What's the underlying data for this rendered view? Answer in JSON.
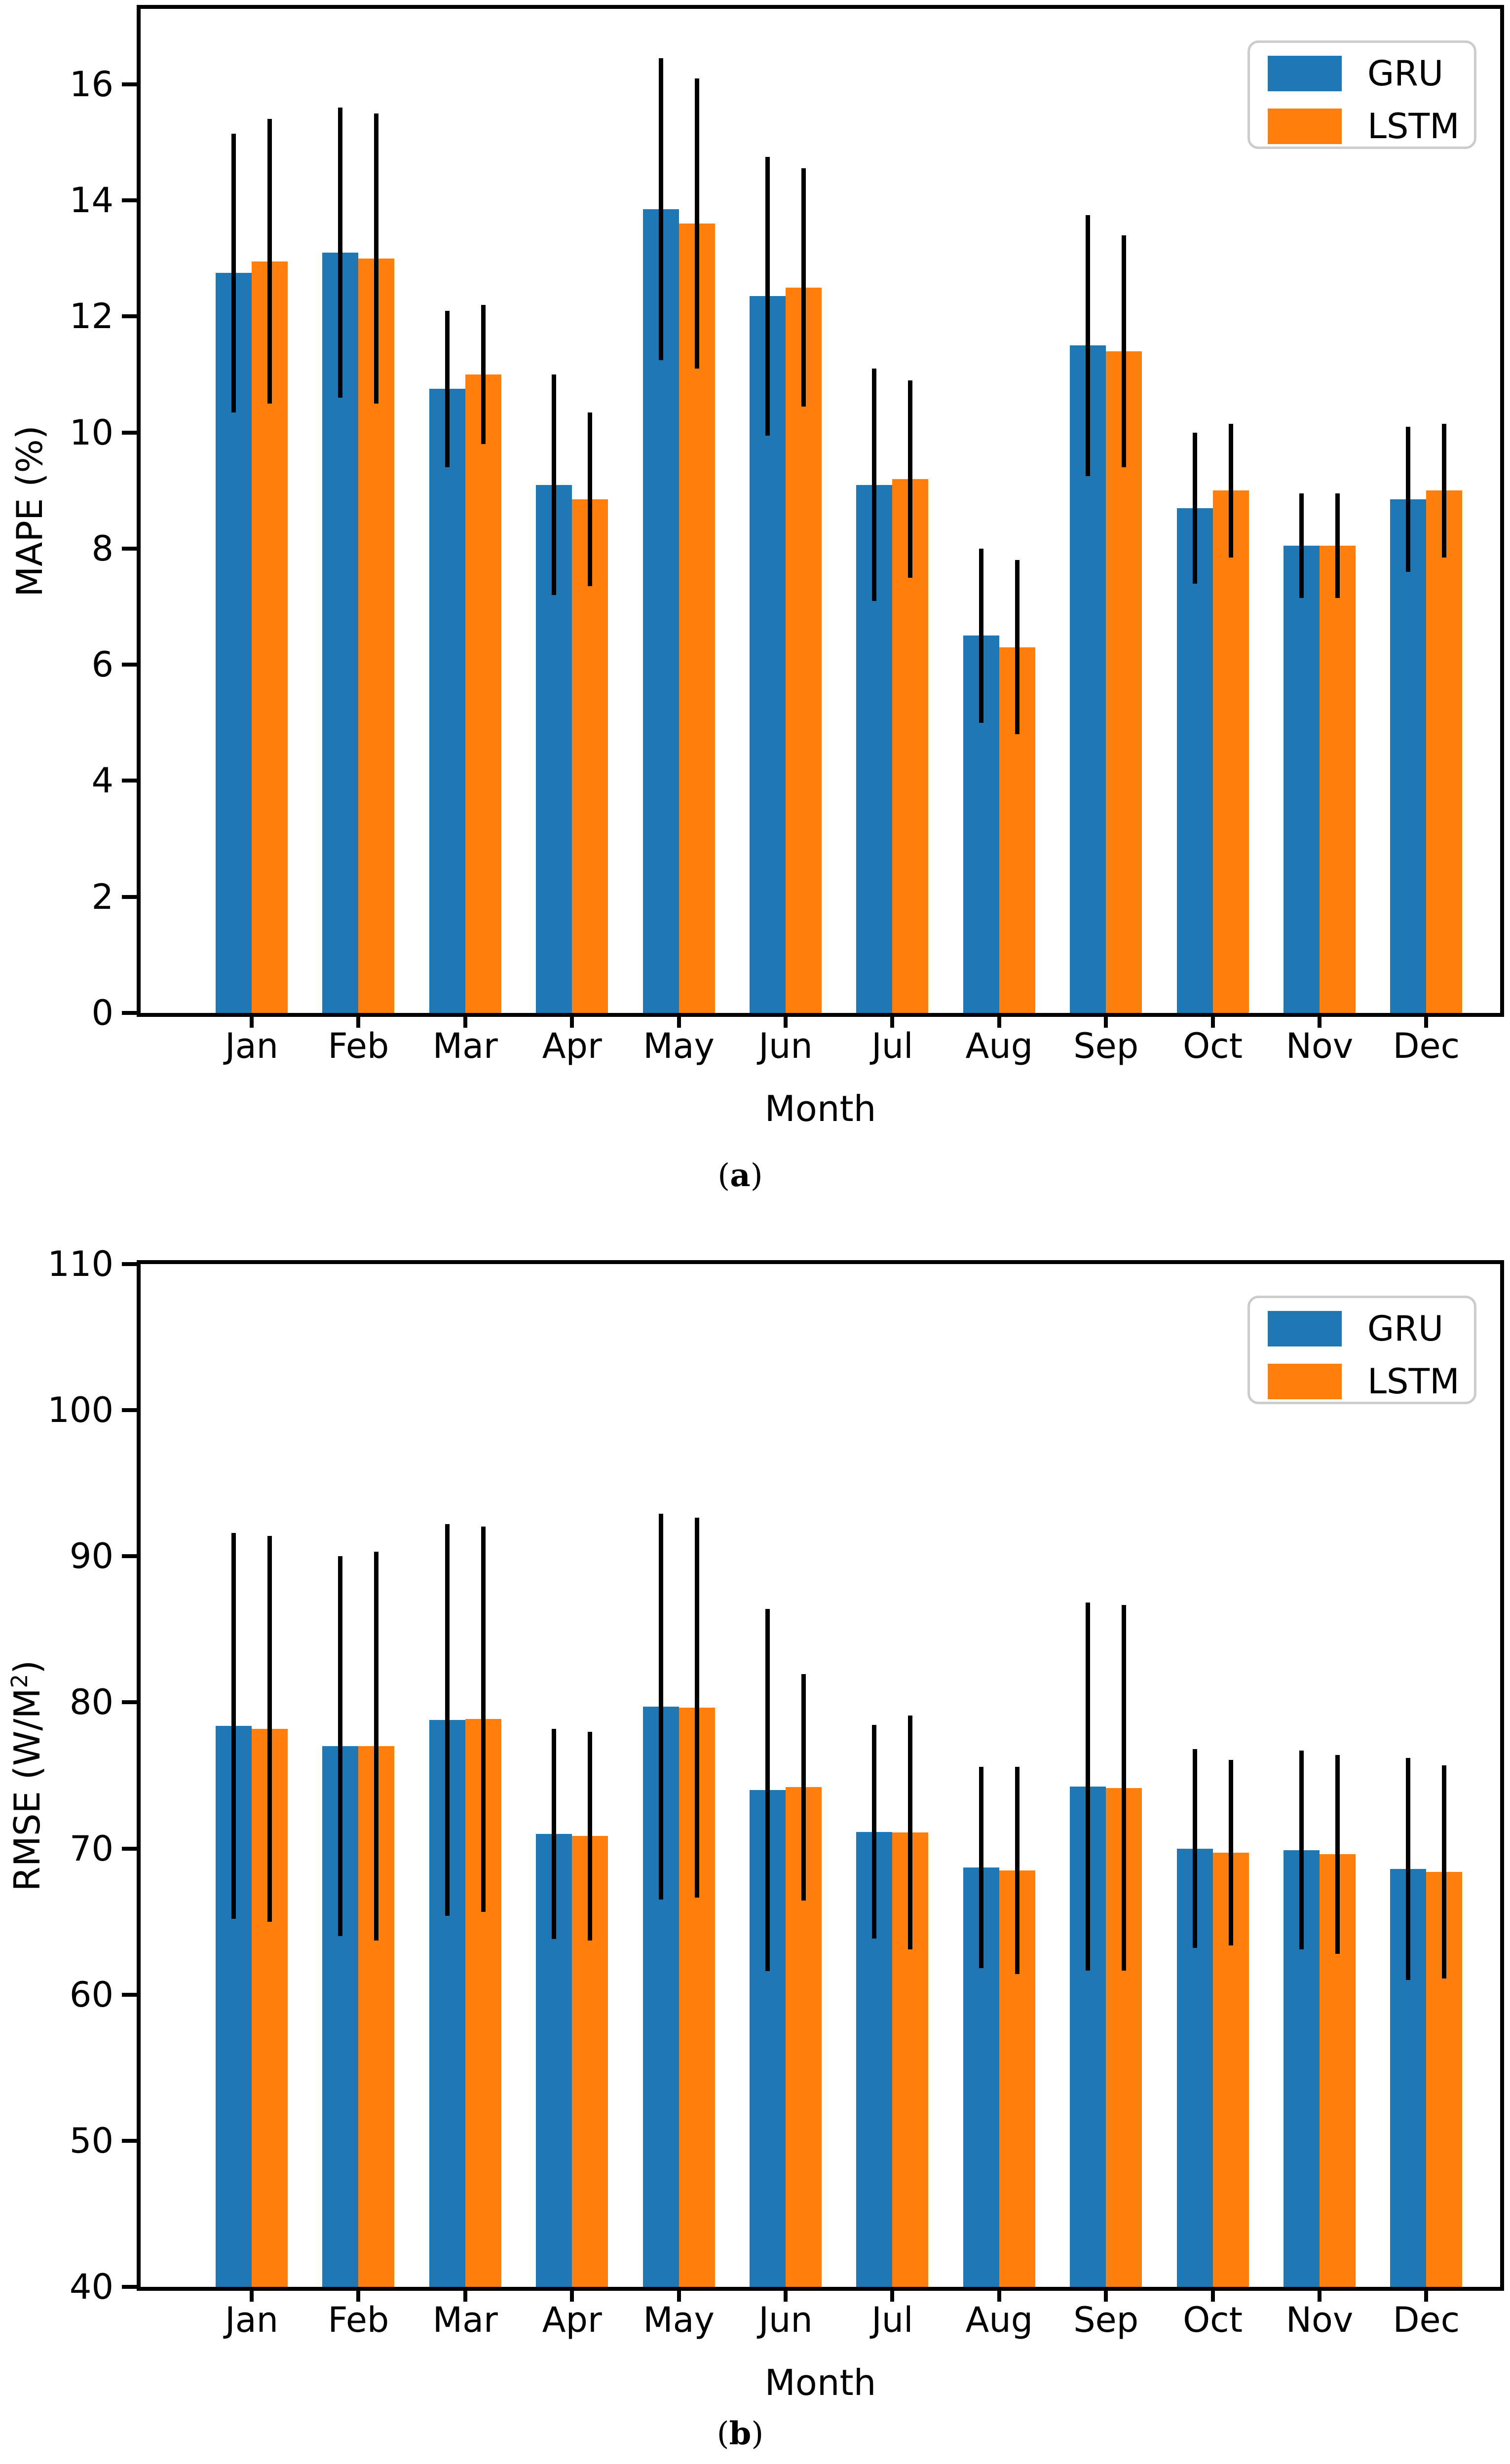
{
  "figure": {
    "background": "#ffffff",
    "captions": [
      {
        "open": "(",
        "letter": "a",
        "close": ")"
      },
      {
        "open": "(",
        "letter": "b",
        "close": ")"
      }
    ]
  },
  "chart_data": [
    {
      "type": "bar",
      "panel": "a",
      "title": "",
      "xlabel": "Month",
      "ylabel": "MAPE (%)",
      "ylim": [
        0,
        17.3
      ],
      "yticks": [
        0,
        2,
        4,
        6,
        8,
        10,
        12,
        14,
        16
      ],
      "grid": false,
      "legend_position": "upper right",
      "legend_entries": [
        "GRU",
        "LSTM"
      ],
      "error_bars": {
        "symmetric": true,
        "color": "#000000"
      },
      "categories": [
        "Jan",
        "Feb",
        "Mar",
        "Apr",
        "May",
        "Jun",
        "Jul",
        "Aug",
        "Sep",
        "Oct",
        "Nov",
        "Dec"
      ],
      "series": [
        {
          "name": "GRU",
          "color": "#1f77b4",
          "values": [
            12.75,
            13.1,
            10.75,
            9.1,
            13.85,
            12.35,
            9.1,
            6.5,
            11.5,
            8.7,
            8.05,
            8.85
          ],
          "errors": [
            2.4,
            2.5,
            1.35,
            1.9,
            2.6,
            2.4,
            2.0,
            1.5,
            2.25,
            1.3,
            0.9,
            1.25
          ]
        },
        {
          "name": "LSTM",
          "color": "#ff7f0e",
          "values": [
            12.95,
            13.0,
            11.0,
            8.85,
            13.6,
            12.5,
            9.2,
            6.3,
            11.4,
            9.0,
            8.05,
            9.0
          ],
          "errors": [
            2.45,
            2.5,
            1.2,
            1.5,
            2.5,
            2.05,
            1.7,
            1.5,
            2.0,
            1.15,
            0.9,
            1.15
          ]
        }
      ]
    },
    {
      "type": "bar",
      "panel": "b",
      "title": "",
      "xlabel": "Month",
      "ylabel": "RMSE (W/M²)",
      "ylim": [
        40,
        110
      ],
      "yticks": [
        40,
        50,
        60,
        70,
        80,
        90,
        100,
        110
      ],
      "grid": false,
      "legend_position": "upper right",
      "legend_entries": [
        "GRU",
        "LSTM"
      ],
      "error_bars": {
        "symmetric": true,
        "color": "#000000"
      },
      "categories": [
        "Jan",
        "Feb",
        "Mar",
        "Apr",
        "May",
        "Jun",
        "Jul",
        "Aug",
        "Sep",
        "Oct",
        "Nov",
        "Dec"
      ],
      "series": [
        {
          "name": "GRU",
          "color": "#1f77b4",
          "values": [
            78.4,
            77.0,
            78.8,
            71.0,
            79.7,
            74.0,
            71.15,
            68.7,
            74.25,
            70.0,
            69.9,
            68.6
          ],
          "errors": [
            13.2,
            13.0,
            13.4,
            7.2,
            13.2,
            12.4,
            7.3,
            6.9,
            12.6,
            6.8,
            6.8,
            7.6
          ]
        },
        {
          "name": "LSTM",
          "color": "#ff7f0e",
          "values": [
            78.2,
            77.0,
            78.85,
            70.85,
            79.65,
            74.2,
            71.1,
            68.5,
            74.15,
            69.7,
            69.6,
            68.4
          ],
          "errors": [
            13.2,
            13.3,
            13.2,
            7.15,
            13.0,
            7.75,
            8.0,
            7.1,
            12.5,
            6.35,
            6.8,
            7.3
          ]
        }
      ]
    }
  ]
}
